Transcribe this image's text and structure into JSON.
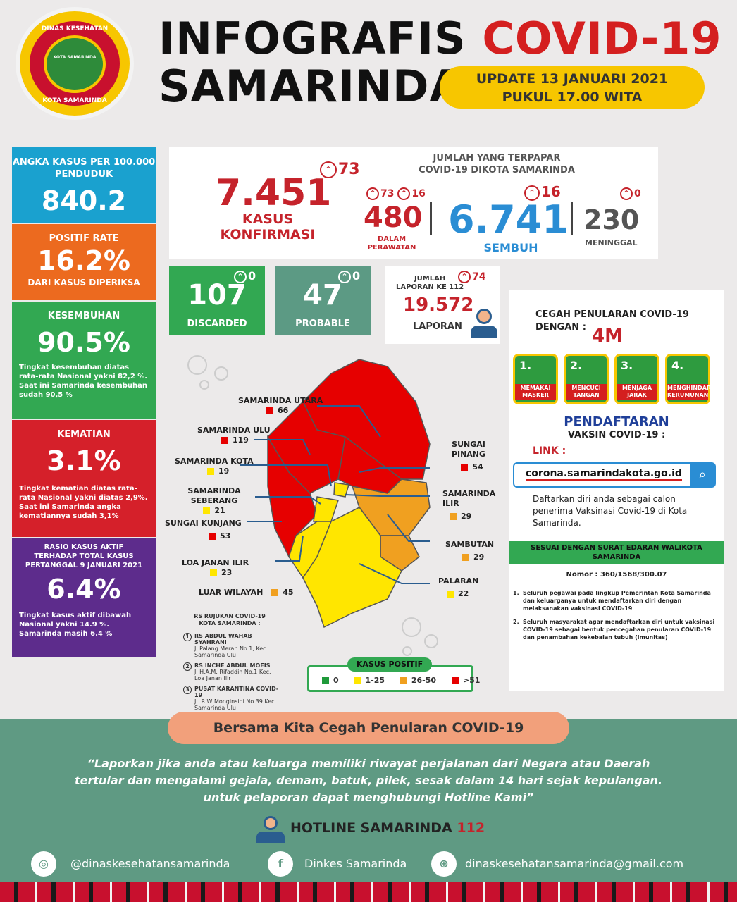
{
  "logo": {
    "top_text": "DINAS KESEHATAN",
    "inner_text": "KOTA SAMARINDA",
    "bottom_text": "KOTA SAMARINDA"
  },
  "header": {
    "title_part1": "INFOGRAFIS",
    "title_part2": "COVID-19",
    "title_line2": "SAMARINDA",
    "update_line1": "UPDATE 13 JANUARI 2021",
    "update_line2": "PUKUL 17.00 WITA"
  },
  "left_stats": [
    {
      "title": "ANGKA KASUS PER 100.000 PENDUDUK",
      "value": "840.2",
      "desc": "",
      "color": "#1aa1cf"
    },
    {
      "title": "POSITIF RATE",
      "value": "16.2%",
      "desc": "DARI KASUS DIPERIKSA",
      "color": "#ec6a1f"
    },
    {
      "title": "KESEMBUHAN",
      "value": "90.5%",
      "desc": "Tingkat kesembuhan diatas rata-rata Nasional yakni 82,2 %. Saat ini Samarinda kesembuhan sudah 90,5 %",
      "color": "#32a852"
    },
    {
      "title": "KEMATIAN",
      "value": "3.1%",
      "desc": "Tingkat kematian diatas rata-rata Nasional yakni diatas 2,9%. Saat ini Samarinda angka kematiannya sudah 3,1%",
      "color": "#d5202a"
    },
    {
      "title": "RASIO KASUS AKTIF TERHADAP TOTAL KASUS PERTANGGAL 9 JANUARI 2021",
      "value": "6.4%",
      "desc": "Tingkat kasus aktif dibawah Nasional yakni 14.9 %. Samarinda masih 6.4 %",
      "color": "#5d2c8c"
    }
  ],
  "top_panel": {
    "heading_line1": "JUMLAH YANG TERPAPAR",
    "heading_line2": "COVID-19 DIKOTA SAMARINDA",
    "confirmed": {
      "value": "7.451",
      "increase": "73",
      "label_line1": "KASUS",
      "label_line2": "KONFIRMASI"
    },
    "treated": {
      "value": "480",
      "increase_a": "73",
      "increase_b": "16",
      "label_line1": "DALAM",
      "label_line2": "PERAWATAN"
    },
    "recovered": {
      "value": "6.741",
      "increase": "16",
      "label": "SEMBUH"
    },
    "deaths": {
      "value": "230",
      "increase": "0",
      "label": "MENINGGAL"
    }
  },
  "mid_boxes": {
    "discarded": {
      "value": "107",
      "increase": "0",
      "label": "DISCARDED",
      "color": "#32a852"
    },
    "probable": {
      "value": "47",
      "increase": "0",
      "label": "PROBABLE",
      "color": "#5c9a84"
    },
    "reports": {
      "label_line1": "JUMLAH",
      "label_line2": "LAPORAN KE 112",
      "increase": "74",
      "value": "19.572",
      "label": "LAPORAN"
    }
  },
  "map": {
    "districts": [
      {
        "name": "SAMARINDA UTARA",
        "value": "66",
        "color": "#e60000"
      },
      {
        "name": "SAMARINDA ULU",
        "value": "119",
        "color": "#e60000"
      },
      {
        "name": "SAMARINDA KOTA",
        "value": "19",
        "color": "#ffe600"
      },
      {
        "name": "SAMARINDA SEBERANG",
        "value": "21",
        "color": "#ffe600"
      },
      {
        "name": "SUNGAI KUNJANG",
        "value": "53",
        "color": "#e60000"
      },
      {
        "name": "LOA JANAN ILIR",
        "value": "23",
        "color": "#ffe600"
      },
      {
        "name": "LUAR WILAYAH",
        "value": "45",
        "color": "#f0a020"
      },
      {
        "name": "SUNGAI PINANG",
        "value": "54",
        "color": "#e60000"
      },
      {
        "name": "SAMARINDA ILIR",
        "value": "29",
        "color": "#f0a020"
      },
      {
        "name": "SAMBUTAN",
        "value": "29",
        "color": "#f0a020"
      },
      {
        "name": "PALARAN",
        "value": "22",
        "color": "#ffe600"
      }
    ],
    "legend_title": "KASUS POSITIF",
    "legend": [
      {
        "label": "0",
        "color": "#1f9a3a"
      },
      {
        "label": "1-25",
        "color": "#ffe600"
      },
      {
        "label": "26-50",
        "color": "#f0a020"
      },
      {
        "label": ">51",
        "color": "#e60000"
      }
    ],
    "hospitals_title_line1": "RS RUJUKAN COVID-19",
    "hospitals_title_line2": "KOTA SAMARINDA :",
    "hospitals": [
      {
        "num": "1",
        "name": "RS ABDUL WAHAB SYAHRANI",
        "addr": "Jl Palang Merah No.1, Kec. Samarinda Ulu"
      },
      {
        "num": "2",
        "name": "RS INCHE ABDUL MOEIS",
        "addr": "Jl H.A.M. Rifaddin No.1 Kec. Loa Janan Ilir"
      },
      {
        "num": "3",
        "name": "PUSAT KARANTINA COVID-19",
        "addr": "Jl. R.W Monginsidi No.39 Kec. Samarinda Ulu"
      }
    ]
  },
  "right_panel": {
    "cegah_line1": "CEGAH PENULARAN COVID-19",
    "cegah_line2": "DENGAN :",
    "four_m": "4M",
    "steps": [
      {
        "num": "1.",
        "label": "MEMAKAI MASKER"
      },
      {
        "num": "2.",
        "label": "MENCUCI TANGAN"
      },
      {
        "num": "3.",
        "label": "MENJAGA JARAK"
      },
      {
        "num": "4.",
        "label": "MENGHINDARI KERUMUNAN"
      }
    ],
    "registration_title": "PENDAFTARAN",
    "registration_sub": "VAKSIN COVID-19 :",
    "link_label": "LINK :",
    "link_url": "corona.samarindakota.go.id",
    "register_desc": "Daftarkan diri anda sebagai calon penerima Vaksinasi Covid-19 di Kota Samarinda.",
    "circular_banner": "SESUAI DENGAN SURAT EDARAN WALIKOTA SAMARINDA",
    "circular_number": "Nomor : 360/1568/300.07",
    "points": [
      "Seluruh pegawai pada lingkup Pemerintah Kota Samarinda dan keluarganya untuk mendaftarkan diri dengan melaksanakan vaksinasi COVID-19",
      "Seluruh masyarakat agar mendaftarkan diri untuk vaksinasi COVID-19 sebagai bentuk pencegahan penularan COVID-19 dan penambahan kekebalan tubuh (imunitas)"
    ]
  },
  "footer": {
    "slogan": "Bersama Kita Cegah Penularan COVID-19",
    "quote_line1": "“Laporkan jika anda atau keluarga memiliki riwayat perjalanan dari Negara atau Daerah",
    "quote_line2": "tertular dan mengalami gejala, demam, batuk, pilek, sesak dalam 14 hari sejak kepulangan.",
    "quote_line3": "untuk pelaporan dapat menghubungi  Hotline Kami”",
    "hotline_label": "HOTLINE SAMARINDA",
    "hotline_number": "112",
    "instagram": "@dinaskesehatansamarinda",
    "facebook": "Dinkes Samarinda",
    "email": "dinaskesehatansamarinda@gmail.com"
  }
}
